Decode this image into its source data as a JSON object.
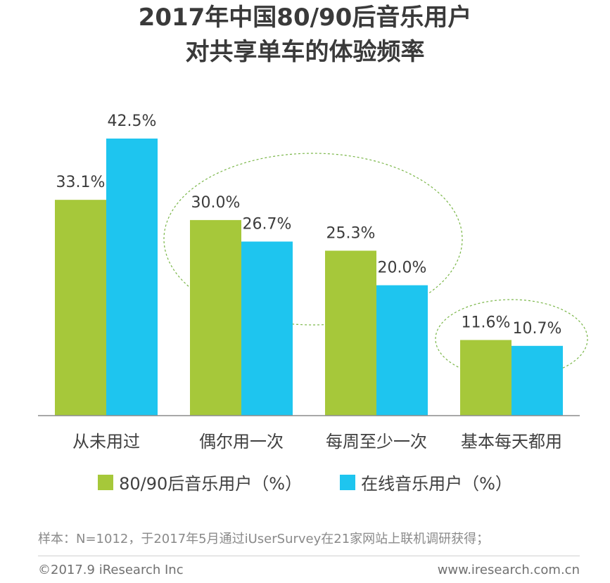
{
  "title_line1": "2017年中国80/90后音乐用户",
  "title_line2": "对共享单车的体验频率",
  "chart_data": {
    "type": "bar",
    "categories": [
      "从未用过",
      "偶尔用一次",
      "每周至少一次",
      "基本每天都用"
    ],
    "series": [
      {
        "name": "80/90后音乐用户（%）",
        "color": "#a6c83a",
        "values": [
          33.1,
          30.0,
          25.3,
          11.6
        ]
      },
      {
        "name": "在线音乐用户（%）",
        "color": "#1ec5ef",
        "values": [
          42.5,
          26.7,
          20.0,
          10.7
        ]
      }
    ],
    "value_labels": [
      [
        "33.1%",
        "30.0%",
        "25.3%",
        "11.6%"
      ],
      [
        "42.5%",
        "26.7%",
        "20.0%",
        "10.7%"
      ]
    ],
    "ylim": [
      0,
      50
    ],
    "legend": "bottom",
    "grid": false
  },
  "note": "样本：N=1012，于2017年5月通过iUserSurvey在21家网站上联机调研获得；",
  "footer_left": "©2017.9 iResearch Inc",
  "footer_right": "www.iresearch.com.cn"
}
